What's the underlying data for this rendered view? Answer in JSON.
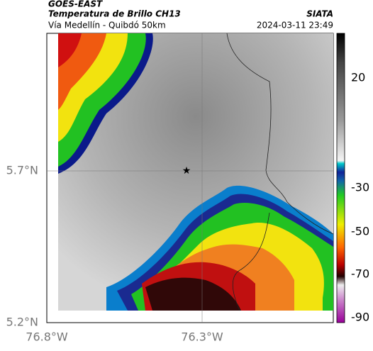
{
  "header": {
    "source": "GOES-EAST",
    "title": "Temperatura de Brillo CH13",
    "subtitle": "Vía Medellín - Quibdó 50km",
    "credit": "SIATA",
    "timestamp": "2024-03-11 23:49"
  },
  "axes": {
    "y_labels": [
      "5.7°N",
      "5.2°N"
    ],
    "x_labels": [
      "76.8°W",
      "76.3°W"
    ]
  },
  "colorbar": {
    "ticks": [
      20,
      -30,
      -50,
      -70,
      -90
    ]
  }
}
